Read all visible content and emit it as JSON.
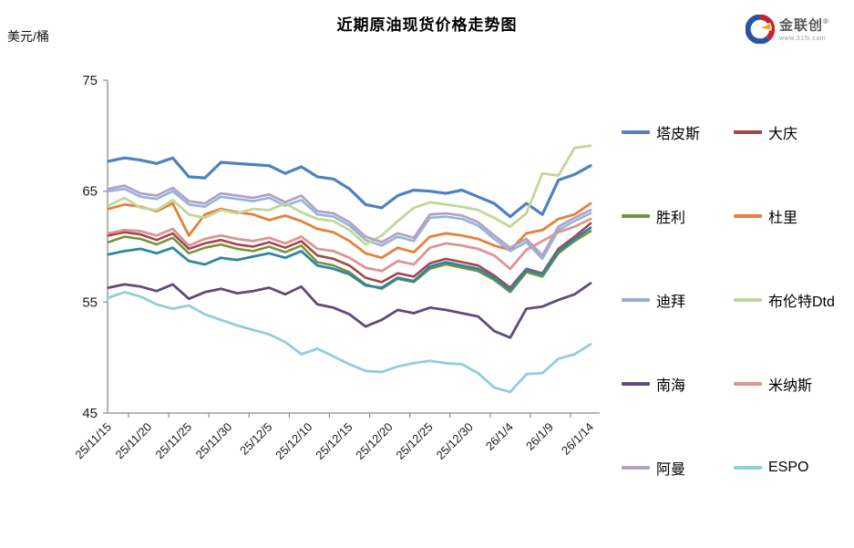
{
  "header": {
    "unit": "美元/桶"
  },
  "logo": {
    "brand": "金联创",
    "registered": "®",
    "url": "www.315i.com"
  },
  "chart_data": {
    "type": "line",
    "title": "近期原油现货价格走势图",
    "ylabel": "美元/桶",
    "ylim": [
      45,
      75
    ],
    "grid": false,
    "legend_position": "right",
    "y_ticks": [
      75,
      65,
      55,
      45
    ],
    "x_ticks": [
      "25/11/15",
      "25/11/20",
      "25/11/25",
      "25/11/30",
      "25/12/5",
      "25/12/10",
      "25/12/15",
      "25/12/20",
      "25/12/25",
      "25/12/30",
      "26/1/4",
      "26/1/9",
      "26/1/14"
    ],
    "x_tick_days": [
      0,
      5,
      10,
      15,
      20,
      25,
      30,
      35,
      40,
      45,
      50,
      55,
      60
    ],
    "point_interval_days": 2,
    "series": [
      {
        "name": "塔皮斯",
        "color": "#4F81BD",
        "width": 3.2,
        "in_legend": true,
        "values": [
          67.7,
          68.0,
          67.8,
          67.5,
          68.0,
          66.3,
          66.2,
          67.6,
          67.5,
          67.4,
          67.3,
          66.6,
          67.2,
          66.3,
          66.1,
          65.2,
          63.8,
          63.5,
          64.6,
          65.1,
          65.0,
          64.8,
          65.1,
          64.5,
          63.9,
          62.7,
          63.9,
          62.9,
          66.0,
          66.5,
          67.3
        ]
      },
      {
        "name": "大庆",
        "color": "#A5464A",
        "width": 2.6,
        "in_legend": true,
        "values": [
          61.0,
          61.3,
          61.1,
          60.6,
          61.2,
          59.8,
          60.3,
          60.6,
          60.2,
          60.0,
          60.4,
          59.9,
          60.5,
          59.2,
          58.9,
          58.3,
          57.2,
          56.8,
          57.6,
          57.3,
          58.5,
          58.9,
          58.6,
          58.3,
          57.4,
          56.3,
          58.0,
          57.6,
          59.8,
          60.9,
          62.1
        ]
      },
      {
        "name": "胜利",
        "color": "#77933C",
        "width": 2.6,
        "in_legend": true,
        "values": [
          60.4,
          60.9,
          60.7,
          60.2,
          60.8,
          59.4,
          59.9,
          60.2,
          59.8,
          59.6,
          60.0,
          59.5,
          60.1,
          58.6,
          58.3,
          57.7,
          56.6,
          56.2,
          57.1,
          56.8,
          58.0,
          58.4,
          58.1,
          57.8,
          57.0,
          55.9,
          57.7,
          57.3,
          59.4,
          60.5,
          61.4
        ]
      },
      {
        "name": "杜里",
        "color": "#E2823B",
        "width": 2.8,
        "in_legend": true,
        "values": [
          63.4,
          63.8,
          63.6,
          63.2,
          63.9,
          61.0,
          62.9,
          63.4,
          63.1,
          62.9,
          62.4,
          62.8,
          62.3,
          61.6,
          61.3,
          60.5,
          59.4,
          59.0,
          59.9,
          59.5,
          60.9,
          61.2,
          61.0,
          60.7,
          60.1,
          59.7,
          61.2,
          61.5,
          62.5,
          62.9,
          63.9
        ]
      },
      {
        "name": "迪拜",
        "color": "#95B3D7",
        "width": 2.6,
        "in_legend": true,
        "values": [
          65.0,
          65.2,
          64.5,
          64.3,
          65.0,
          63.8,
          63.6,
          64.5,
          64.3,
          64.1,
          64.4,
          63.7,
          64.2,
          62.9,
          62.7,
          61.9,
          60.6,
          60.1,
          60.9,
          60.5,
          62.6,
          62.7,
          62.5,
          61.9,
          60.7,
          59.6,
          60.4,
          58.9,
          61.5,
          62.3,
          63.0
        ]
      },
      {
        "name": "布伦特Dtd",
        "color": "#C3D69B",
        "width": 2.8,
        "in_legend": true,
        "values": [
          63.7,
          64.4,
          63.5,
          63.3,
          64.2,
          62.9,
          62.6,
          63.3,
          63.0,
          63.4,
          63.3,
          63.9,
          63.1,
          62.5,
          62.3,
          61.5,
          60.2,
          61.0,
          62.3,
          63.5,
          64.0,
          63.8,
          63.6,
          63.3,
          62.6,
          61.8,
          63.0,
          66.6,
          66.4,
          68.9,
          69.1
        ]
      },
      {
        "name": "南海",
        "color": "#604A7B",
        "width": 2.8,
        "in_legend": true,
        "values": [
          56.3,
          56.6,
          56.4,
          56.0,
          56.6,
          55.3,
          55.9,
          56.2,
          55.8,
          56.0,
          56.3,
          55.7,
          56.4,
          54.8,
          54.5,
          53.9,
          52.8,
          53.4,
          54.3,
          54.0,
          54.5,
          54.3,
          54.0,
          53.7,
          52.4,
          51.8,
          54.4,
          54.6,
          55.2,
          55.7,
          56.7
        ]
      },
      {
        "name": "米纳斯",
        "color": "#D99694",
        "width": 2.8,
        "in_legend": true,
        "values": [
          61.2,
          61.5,
          61.4,
          61.0,
          61.6,
          60.1,
          60.7,
          61.0,
          60.7,
          60.5,
          60.8,
          60.3,
          60.9,
          59.8,
          59.6,
          59.0,
          58.1,
          57.8,
          58.7,
          58.4,
          59.9,
          60.3,
          60.1,
          59.8,
          59.2,
          58.0,
          59.7,
          60.5,
          61.3,
          61.8,
          62.5
        ]
      },
      {
        "name": "阿曼",
        "color": "#B2A2C7",
        "width": 2.8,
        "in_legend": true,
        "values": [
          65.2,
          65.5,
          64.8,
          64.6,
          65.3,
          64.1,
          63.9,
          64.8,
          64.6,
          64.4,
          64.7,
          64.0,
          64.6,
          63.2,
          63.0,
          62.2,
          60.9,
          60.4,
          61.2,
          60.8,
          62.9,
          63.0,
          62.8,
          62.2,
          61.0,
          59.9,
          60.7,
          59.2,
          61.8,
          62.6,
          63.3
        ]
      },
      {
        "name": "ESPO",
        "color": "#92CDDC",
        "width": 2.8,
        "in_legend": true,
        "values": [
          55.4,
          55.9,
          55.5,
          54.8,
          54.4,
          54.7,
          53.9,
          53.4,
          52.9,
          52.5,
          52.1,
          51.4,
          50.3,
          50.8,
          50.1,
          49.4,
          48.8,
          48.7,
          49.2,
          49.5,
          49.7,
          49.5,
          49.4,
          48.6,
          47.3,
          46.9,
          48.5,
          48.6,
          49.9,
          50.3,
          51.2
        ]
      },
      {
        "name": "",
        "color": "#31859C",
        "width": 2.8,
        "in_legend": false,
        "values": [
          59.3,
          59.6,
          59.8,
          59.4,
          59.9,
          58.7,
          58.4,
          59.0,
          58.8,
          59.1,
          59.4,
          59.0,
          59.6,
          58.3,
          58.0,
          57.5,
          56.5,
          56.3,
          57.2,
          56.9,
          58.2,
          58.6,
          58.3,
          58.0,
          57.2,
          56.1,
          57.9,
          57.5,
          59.6,
          60.7,
          61.7
        ]
      }
    ]
  },
  "axis_colors": {
    "line": "#8C8C8C",
    "tick_label": "#1a1a1a"
  }
}
